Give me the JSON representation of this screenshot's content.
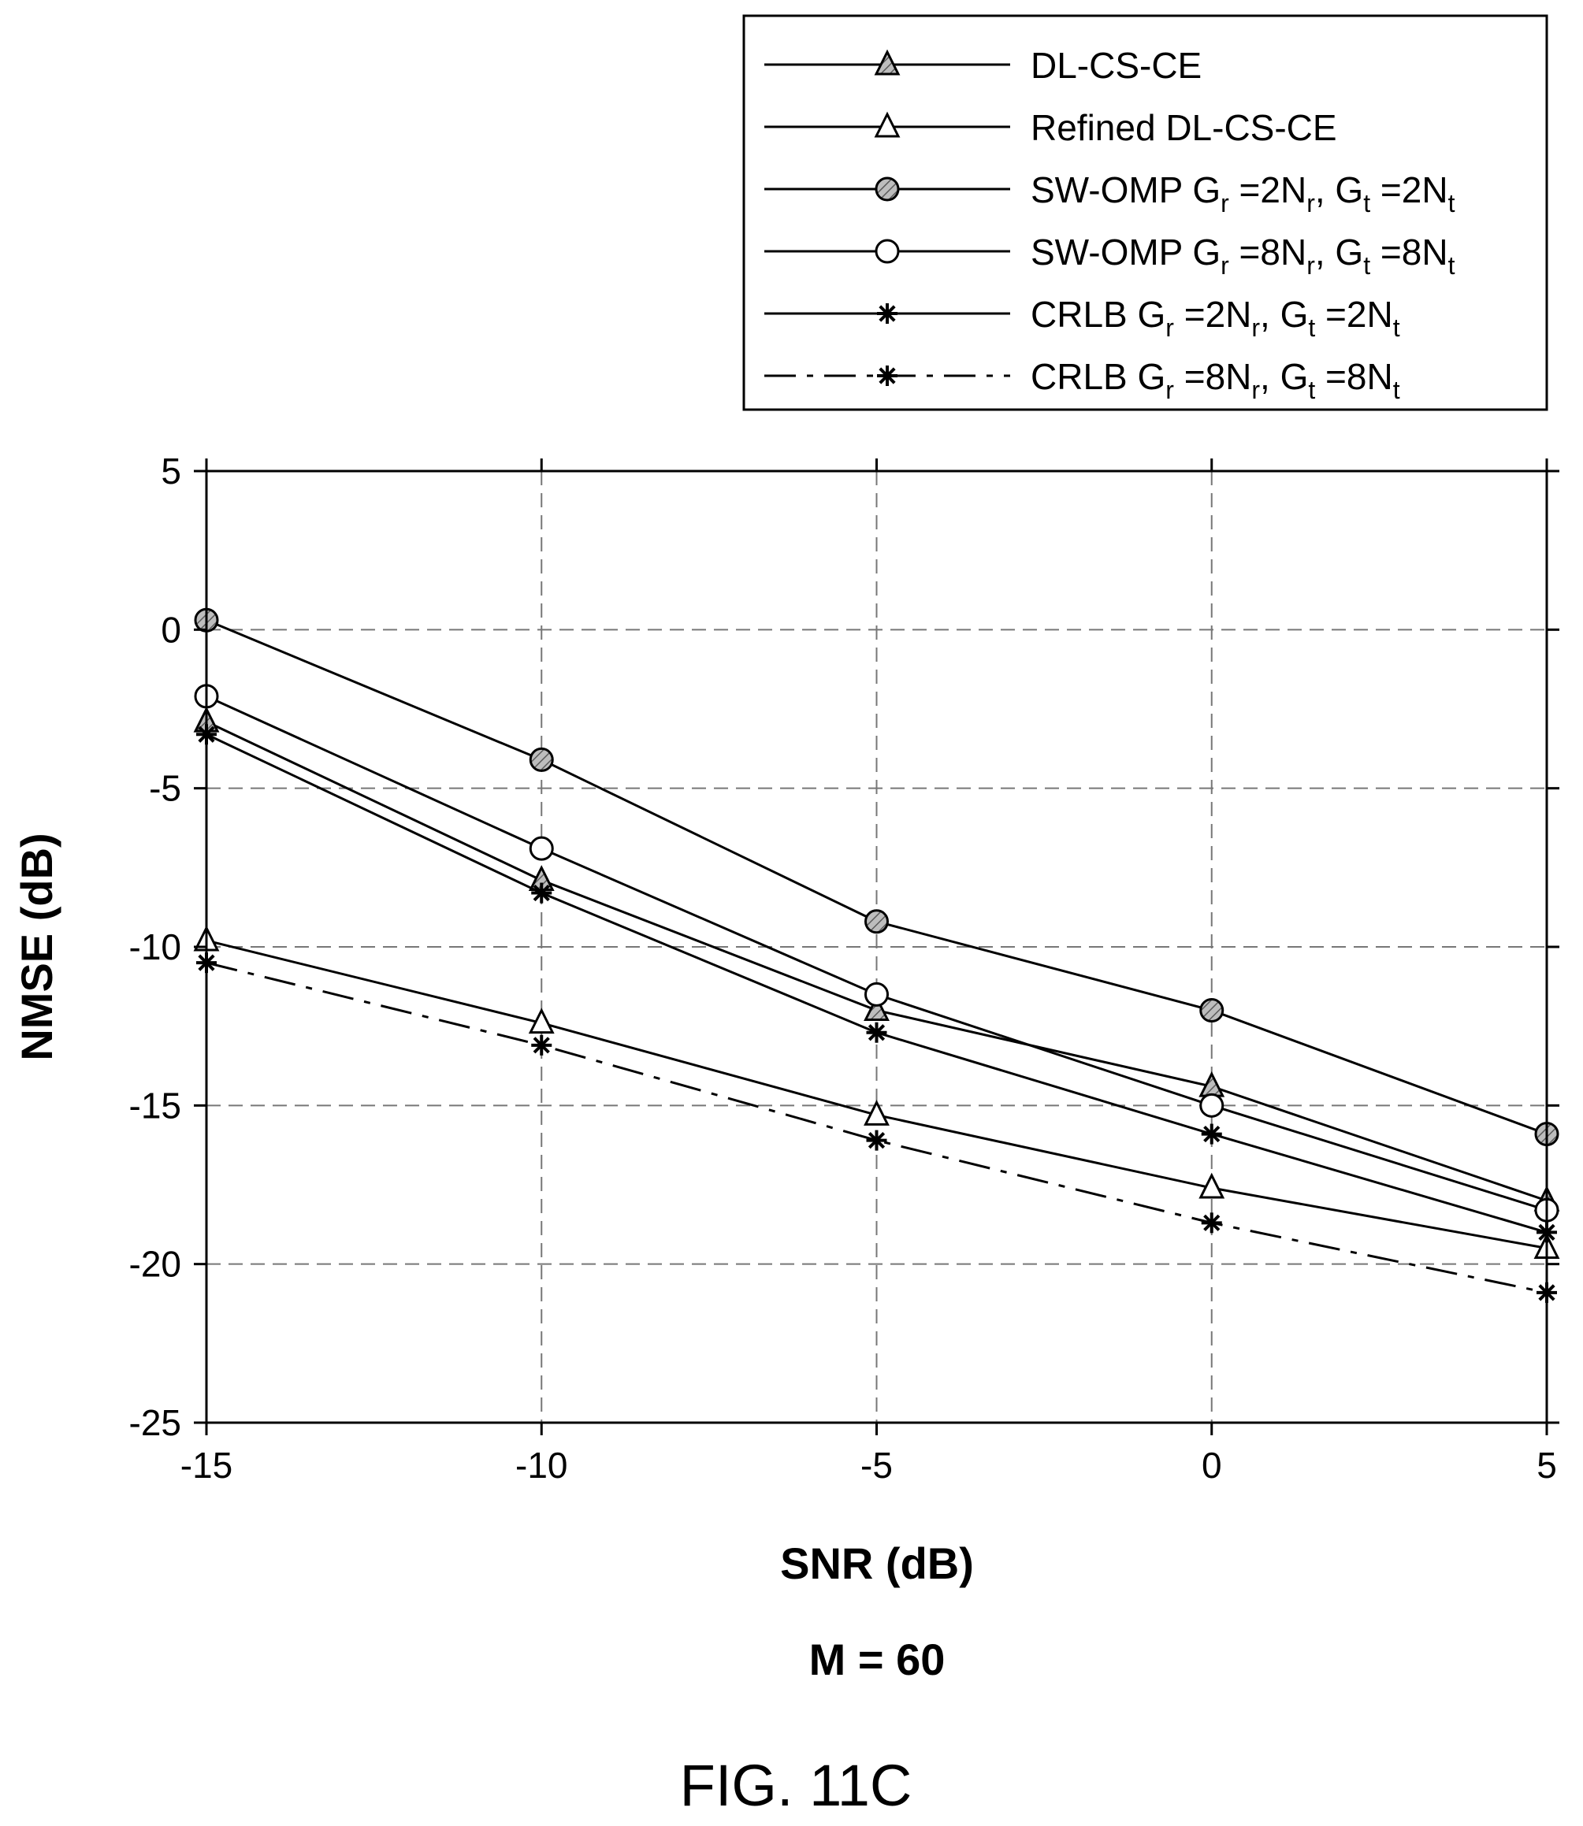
{
  "chart_data": {
    "type": "line",
    "xlabel": "SNR (dB)",
    "ylabel": "NMSE (dB)",
    "subtitle": "M = 60",
    "figure_label": "FIG. 11C",
    "xlim": [
      -15,
      5
    ],
    "ylim": [
      -25,
      5
    ],
    "x": [
      -15,
      -10,
      -5,
      0,
      5
    ],
    "x_ticks": [
      -15,
      -10,
      -5,
      0,
      5
    ],
    "y_ticks": [
      5,
      0,
      -5,
      -10,
      -15,
      -20,
      -25
    ],
    "grid": true,
    "legend_position": "top-right",
    "series": [
      {
        "name": "DL-CS-CE",
        "legend_main": "DL-CS-CE",
        "legend_parts": [],
        "marker": "triangle",
        "fill": "hatched",
        "line": "solid",
        "values": [
          -2.9,
          -7.9,
          -12.0,
          -14.4,
          -18.0
        ]
      },
      {
        "name": "Refined DL-CS-CE",
        "legend_main": "Refined DL-CS-CE",
        "legend_parts": [],
        "marker": "triangle",
        "fill": "open",
        "line": "solid",
        "values": [
          -9.8,
          -12.4,
          -15.3,
          -17.6,
          -19.5
        ]
      },
      {
        "name": "SW-OMP Gr =2Nr, Gt =2Nt",
        "legend_main": "SW-OMP G",
        "legend_parts": [
          "r",
          " =2N",
          "r",
          ", G",
          "t",
          " =2N",
          "t"
        ],
        "marker": "circle",
        "fill": "hatched",
        "line": "solid",
        "values": [
          0.3,
          -4.1,
          -9.2,
          -12.0,
          -15.9
        ]
      },
      {
        "name": "SW-OMP Gr =8Nr, Gt =8Nt",
        "legend_main": "SW-OMP G",
        "legend_parts": [
          "r",
          " =8N",
          "r",
          ", G",
          "t",
          " =8N",
          "t"
        ],
        "marker": "circle",
        "fill": "open",
        "line": "solid",
        "values": [
          -2.1,
          -6.9,
          -11.5,
          -15.0,
          -18.3
        ]
      },
      {
        "name": "CRLB Gr =2Nr, Gt =2Nt",
        "legend_main": "CRLB G",
        "legend_parts": [
          "r",
          " =2N",
          "r",
          ", G",
          "t",
          " =2N",
          "t"
        ],
        "marker": "star",
        "fill": "none",
        "line": "solid",
        "values": [
          -3.3,
          -8.3,
          -12.7,
          -15.9,
          -19.0
        ]
      },
      {
        "name": "CRLB Gr =8Nr, Gt =8Nt",
        "legend_main": "CRLB G",
        "legend_parts": [
          "r",
          " =8N",
          "r",
          ", G",
          "t",
          " =8N",
          "t"
        ],
        "marker": "star",
        "fill": "none",
        "line": "dashdot",
        "values": [
          -10.5,
          -13.1,
          -16.1,
          -18.7,
          -20.9
        ]
      }
    ]
  }
}
